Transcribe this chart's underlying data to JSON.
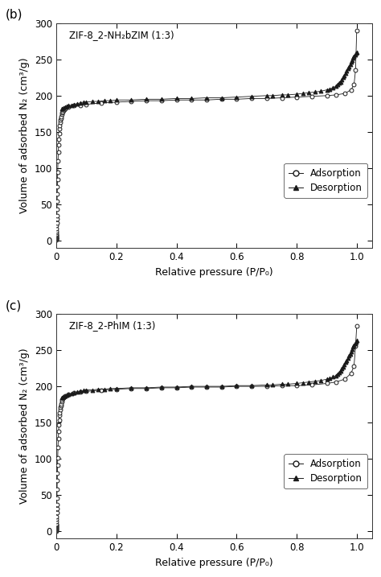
{
  "panel_b": {
    "label": "(b)",
    "title": "ZIF-8_2-NH₂bZIM (1:3)",
    "adsorption_x": [
      0.0001,
      0.0002,
      0.0003,
      0.0004,
      0.0005,
      0.0006,
      0.0007,
      0.0008,
      0.0009,
      0.001,
      0.0012,
      0.0014,
      0.0016,
      0.0018,
      0.002,
      0.0022,
      0.0025,
      0.003,
      0.0035,
      0.004,
      0.0045,
      0.005,
      0.006,
      0.007,
      0.008,
      0.009,
      0.01,
      0.011,
      0.012,
      0.013,
      0.014,
      0.015,
      0.016,
      0.018,
      0.02,
      0.022,
      0.025,
      0.028,
      0.03,
      0.04,
      0.06,
      0.08,
      0.1,
      0.15,
      0.2,
      0.25,
      0.3,
      0.35,
      0.4,
      0.45,
      0.5,
      0.55,
      0.6,
      0.65,
      0.7,
      0.75,
      0.8,
      0.85,
      0.9,
      0.93,
      0.96,
      0.98,
      0.99,
      0.995,
      0.999
    ],
    "adsorption_y": [
      1,
      2,
      3,
      4,
      5,
      6,
      7,
      8,
      9,
      11,
      14,
      17,
      21,
      25,
      30,
      35,
      43,
      55,
      65,
      75,
      85,
      95,
      110,
      122,
      132,
      140,
      148,
      154,
      159,
      163,
      166,
      169,
      171,
      174,
      176,
      178,
      180,
      181,
      182,
      184,
      186,
      187,
      188,
      190,
      191,
      192,
      193,
      193,
      194,
      194,
      194,
      195,
      195,
      196,
      196,
      197,
      198,
      199,
      200,
      201,
      203,
      208,
      215,
      235,
      290
    ],
    "desorption_x": [
      0.999,
      0.996,
      0.993,
      0.99,
      0.987,
      0.984,
      0.98,
      0.977,
      0.974,
      0.97,
      0.966,
      0.962,
      0.958,
      0.954,
      0.95,
      0.945,
      0.94,
      0.935,
      0.93,
      0.92,
      0.91,
      0.9,
      0.88,
      0.86,
      0.84,
      0.82,
      0.8,
      0.77,
      0.75,
      0.72,
      0.7,
      0.65,
      0.6,
      0.55,
      0.5,
      0.45,
      0.4,
      0.35,
      0.3,
      0.25,
      0.2,
      0.18,
      0.16,
      0.14,
      0.12,
      0.1,
      0.09,
      0.08,
      0.07,
      0.06,
      0.05,
      0.04,
      0.035,
      0.03,
      0.025,
      0.02
    ],
    "desorption_y": [
      260,
      258,
      256,
      254,
      252,
      249,
      246,
      243,
      240,
      237,
      234,
      231,
      228,
      225,
      222,
      219,
      217,
      215,
      213,
      211,
      209,
      208,
      206,
      205,
      204,
      203,
      202,
      201,
      201,
      200,
      200,
      199,
      198,
      197,
      197,
      196,
      196,
      195,
      195,
      194,
      194,
      193,
      193,
      192,
      192,
      191,
      191,
      190,
      189,
      188,
      187,
      186,
      185,
      184,
      183,
      182
    ]
  },
  "panel_c": {
    "label": "(c)",
    "title": "ZIF-8_2-PhIM (1:3)",
    "adsorption_x": [
      0.0001,
      0.0002,
      0.0003,
      0.0004,
      0.0005,
      0.0006,
      0.0007,
      0.0008,
      0.0009,
      0.001,
      0.0012,
      0.0014,
      0.0016,
      0.0018,
      0.002,
      0.0022,
      0.0025,
      0.003,
      0.0035,
      0.004,
      0.0045,
      0.005,
      0.006,
      0.007,
      0.008,
      0.009,
      0.01,
      0.011,
      0.012,
      0.013,
      0.014,
      0.015,
      0.016,
      0.018,
      0.02,
      0.022,
      0.025,
      0.028,
      0.03,
      0.04,
      0.06,
      0.08,
      0.1,
      0.15,
      0.2,
      0.25,
      0.3,
      0.35,
      0.4,
      0.45,
      0.5,
      0.55,
      0.6,
      0.65,
      0.7,
      0.75,
      0.8,
      0.85,
      0.9,
      0.93,
      0.96,
      0.98,
      0.99,
      0.995,
      0.999
    ],
    "adsorption_y": [
      1,
      2,
      3,
      4,
      5,
      6,
      7,
      8,
      9,
      11,
      14,
      17,
      21,
      26,
      31,
      37,
      46,
      58,
      70,
      80,
      91,
      101,
      116,
      128,
      138,
      147,
      154,
      160,
      164,
      168,
      171,
      174,
      176,
      179,
      181,
      183,
      185,
      186,
      187,
      189,
      191,
      192,
      193,
      195,
      196,
      197,
      197,
      198,
      198,
      199,
      199,
      199,
      200,
      200,
      200,
      201,
      201,
      202,
      204,
      206,
      210,
      218,
      228,
      255,
      283
    ],
    "desorption_x": [
      0.999,
      0.996,
      0.993,
      0.99,
      0.987,
      0.984,
      0.98,
      0.977,
      0.974,
      0.97,
      0.966,
      0.962,
      0.958,
      0.954,
      0.95,
      0.945,
      0.94,
      0.935,
      0.93,
      0.92,
      0.91,
      0.9,
      0.88,
      0.86,
      0.84,
      0.82,
      0.8,
      0.77,
      0.75,
      0.72,
      0.7,
      0.65,
      0.6,
      0.55,
      0.5,
      0.45,
      0.4,
      0.35,
      0.3,
      0.25,
      0.2,
      0.18,
      0.16,
      0.14,
      0.12,
      0.1,
      0.09,
      0.08,
      0.07,
      0.06,
      0.05,
      0.04,
      0.035,
      0.03,
      0.025,
      0.02
    ],
    "desorption_y": [
      263,
      261,
      259,
      257,
      254,
      251,
      248,
      245,
      242,
      239,
      236,
      233,
      230,
      227,
      224,
      221,
      219,
      217,
      215,
      213,
      211,
      210,
      208,
      207,
      206,
      205,
      204,
      203,
      203,
      202,
      202,
      201,
      201,
      200,
      200,
      200,
      199,
      199,
      198,
      198,
      197,
      197,
      196,
      196,
      195,
      195,
      194,
      193,
      192,
      191,
      190,
      189,
      188,
      187,
      186,
      185
    ]
  },
  "ylabel": "Volume of adsorbed N₂ (cm³/g)",
  "xlabel": "Relative pressure (P/P₀)",
  "xlim": [
    0,
    1.05
  ],
  "ylim": [
    -10,
    300
  ],
  "xticks": [
    0,
    0.2,
    0.4,
    0.6,
    0.8,
    1.0
  ],
  "yticks": [
    0,
    50,
    100,
    150,
    200,
    250,
    300
  ],
  "legend_adsorption": "Adsorption",
  "legend_desorption": "Desorption",
  "bg_color": "#ffffff",
  "line_color": "#1a1a1a"
}
